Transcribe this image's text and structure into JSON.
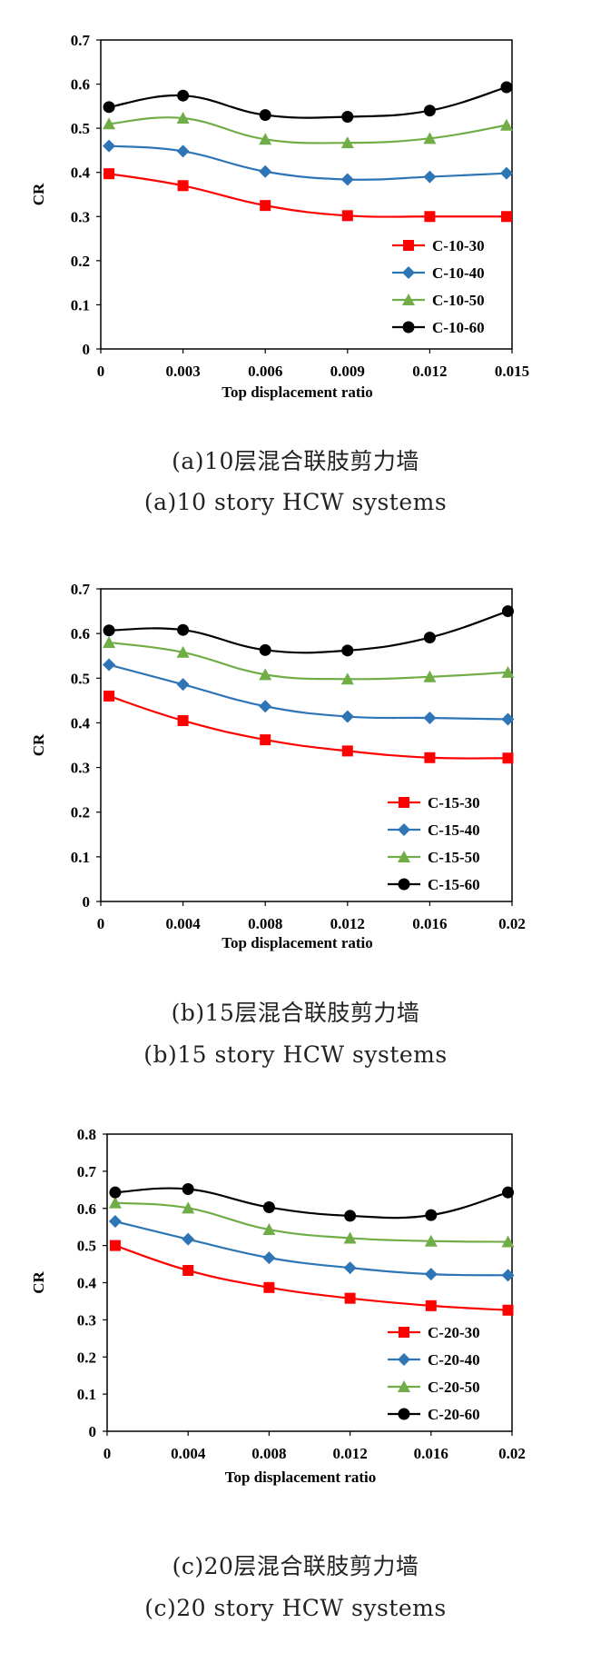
{
  "chart_data": [
    {
      "type": "line",
      "x": [
        0.0003,
        0.003,
        0.006,
        0.009,
        0.012,
        0.0148
      ],
      "xlim": [
        0,
        0.015
      ],
      "xticks": [
        "0",
        "0.003",
        "0.006",
        "0.009",
        "0.012",
        "0.015"
      ],
      "ylim": [
        0,
        0.7
      ],
      "yticks": [
        "0",
        "0.1",
        "0.2",
        "0.3",
        "0.4",
        "0.5",
        "0.6",
        "0.7"
      ],
      "xlabel": "Top displacement ratio",
      "ylabel": "CR",
      "legend_position": "bottom-right",
      "grid": false,
      "series": [
        {
          "name": "C-10-30",
          "color": "#ff0000",
          "marker": "square",
          "values": [
            0.397,
            0.37,
            0.325,
            0.302,
            0.3,
            0.3
          ]
        },
        {
          "name": "C-10-40",
          "color": "#2e75b6",
          "marker": "diamond",
          "values": [
            0.46,
            0.448,
            0.402,
            0.384,
            0.39,
            0.398
          ]
        },
        {
          "name": "C-10-50",
          "color": "#70ad47",
          "marker": "triangle",
          "values": [
            0.51,
            0.523,
            0.475,
            0.467,
            0.477,
            0.507
          ]
        },
        {
          "name": "C-10-60",
          "color": "#000000",
          "marker": "circle",
          "values": [
            0.548,
            0.574,
            0.53,
            0.526,
            0.54,
            0.593
          ]
        }
      ],
      "caption_cn": "(a)10层混合联肢剪力墙",
      "caption_en": "(a)10 story HCW systems"
    },
    {
      "type": "line",
      "x": [
        0.0004,
        0.004,
        0.008,
        0.012,
        0.016,
        0.0198
      ],
      "xlim": [
        0,
        0.02
      ],
      "xticks": [
        "0",
        "0.004",
        "0.008",
        "0.012",
        "0.016",
        "0.02"
      ],
      "ylim": [
        0,
        0.7
      ],
      "yticks": [
        "0",
        "0.1",
        "0.2",
        "0.3",
        "0.4",
        "0.5",
        "0.6",
        "0.7"
      ],
      "xlabel": "Top displacement ratio",
      "ylabel": "CR",
      "legend_position": "bottom-right",
      "grid": false,
      "series": [
        {
          "name": "C-15-30",
          "color": "#ff0000",
          "marker": "square",
          "values": [
            0.46,
            0.405,
            0.362,
            0.337,
            0.322,
            0.321
          ]
        },
        {
          "name": "C-15-40",
          "color": "#2e75b6",
          "marker": "diamond",
          "values": [
            0.53,
            0.486,
            0.437,
            0.414,
            0.411,
            0.408
          ]
        },
        {
          "name": "C-15-50",
          "color": "#70ad47",
          "marker": "triangle",
          "values": [
            0.58,
            0.558,
            0.508,
            0.498,
            0.503,
            0.513
          ]
        },
        {
          "name": "C-15-60",
          "color": "#000000",
          "marker": "circle",
          "values": [
            0.607,
            0.608,
            0.563,
            0.562,
            0.591,
            0.65
          ]
        }
      ],
      "caption_cn": "(b)15层混合联肢剪力墙",
      "caption_en": "(b)15 story HCW systems"
    },
    {
      "type": "line",
      "x": [
        0.0004,
        0.004,
        0.008,
        0.012,
        0.016,
        0.0198
      ],
      "xlim": [
        0,
        0.02
      ],
      "xticks": [
        "0",
        "0.004",
        "0.008",
        "0.012",
        "0.016",
        "0.02"
      ],
      "ylim": [
        0,
        0.8
      ],
      "yticks": [
        "0",
        "0.1",
        "0.2",
        "0.3",
        "0.4",
        "0.5",
        "0.6",
        "0.7",
        "0.8"
      ],
      "xlabel": "Top displacement ratio",
      "ylabel": "CR",
      "legend_position": "bottom-right",
      "grid": false,
      "series": [
        {
          "name": "C-20-30",
          "color": "#ff0000",
          "marker": "square",
          "values": [
            0.5,
            0.433,
            0.387,
            0.358,
            0.338,
            0.326
          ]
        },
        {
          "name": "C-20-40",
          "color": "#2e75b6",
          "marker": "diamond",
          "values": [
            0.565,
            0.517,
            0.467,
            0.44,
            0.423,
            0.42
          ]
        },
        {
          "name": "C-20-50",
          "color": "#70ad47",
          "marker": "triangle",
          "values": [
            0.615,
            0.601,
            0.543,
            0.52,
            0.512,
            0.51
          ]
        },
        {
          "name": "C-20-60",
          "color": "#000000",
          "marker": "circle",
          "values": [
            0.643,
            0.652,
            0.603,
            0.58,
            0.582,
            0.643
          ]
        }
      ],
      "caption_cn": "(c)20层混合联肢剪力墙",
      "caption_en": "(c)20 story HCW systems"
    }
  ]
}
